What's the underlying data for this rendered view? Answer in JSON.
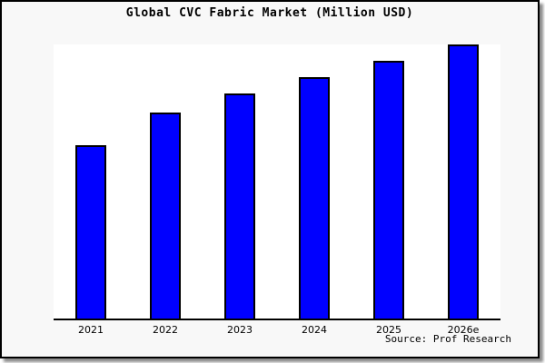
{
  "title": "Global CVC Fabric Market (Million USD)",
  "source_text": "Source: Prof Research",
  "colors": {
    "card_background": "#f8f8f8",
    "plot_background": "#ffffff",
    "bar_fill": "#0000ff",
    "bar_border": "#000000",
    "frame_border": "#000000",
    "axis_line": "#000000",
    "shadow": "#8c8c8c",
    "text": "#000000"
  },
  "chart_data": {
    "type": "bar",
    "title": "Global CVC Fabric Market (Million USD)",
    "categories": [
      "2021",
      "2022",
      "2023",
      "2024",
      "2025",
      "2026e"
    ],
    "values": [
      63,
      75,
      82,
      88,
      94,
      100
    ],
    "value_scale_note": "no y-axis ticks shown; values estimated as percent of tallest bar (2026e = 100)",
    "xlabel": "",
    "ylabel": "",
    "ylim": [
      0,
      100.7
    ],
    "grid": false,
    "legend": null,
    "bar_color": "#0000ff",
    "source": "Source: Prof Research"
  }
}
